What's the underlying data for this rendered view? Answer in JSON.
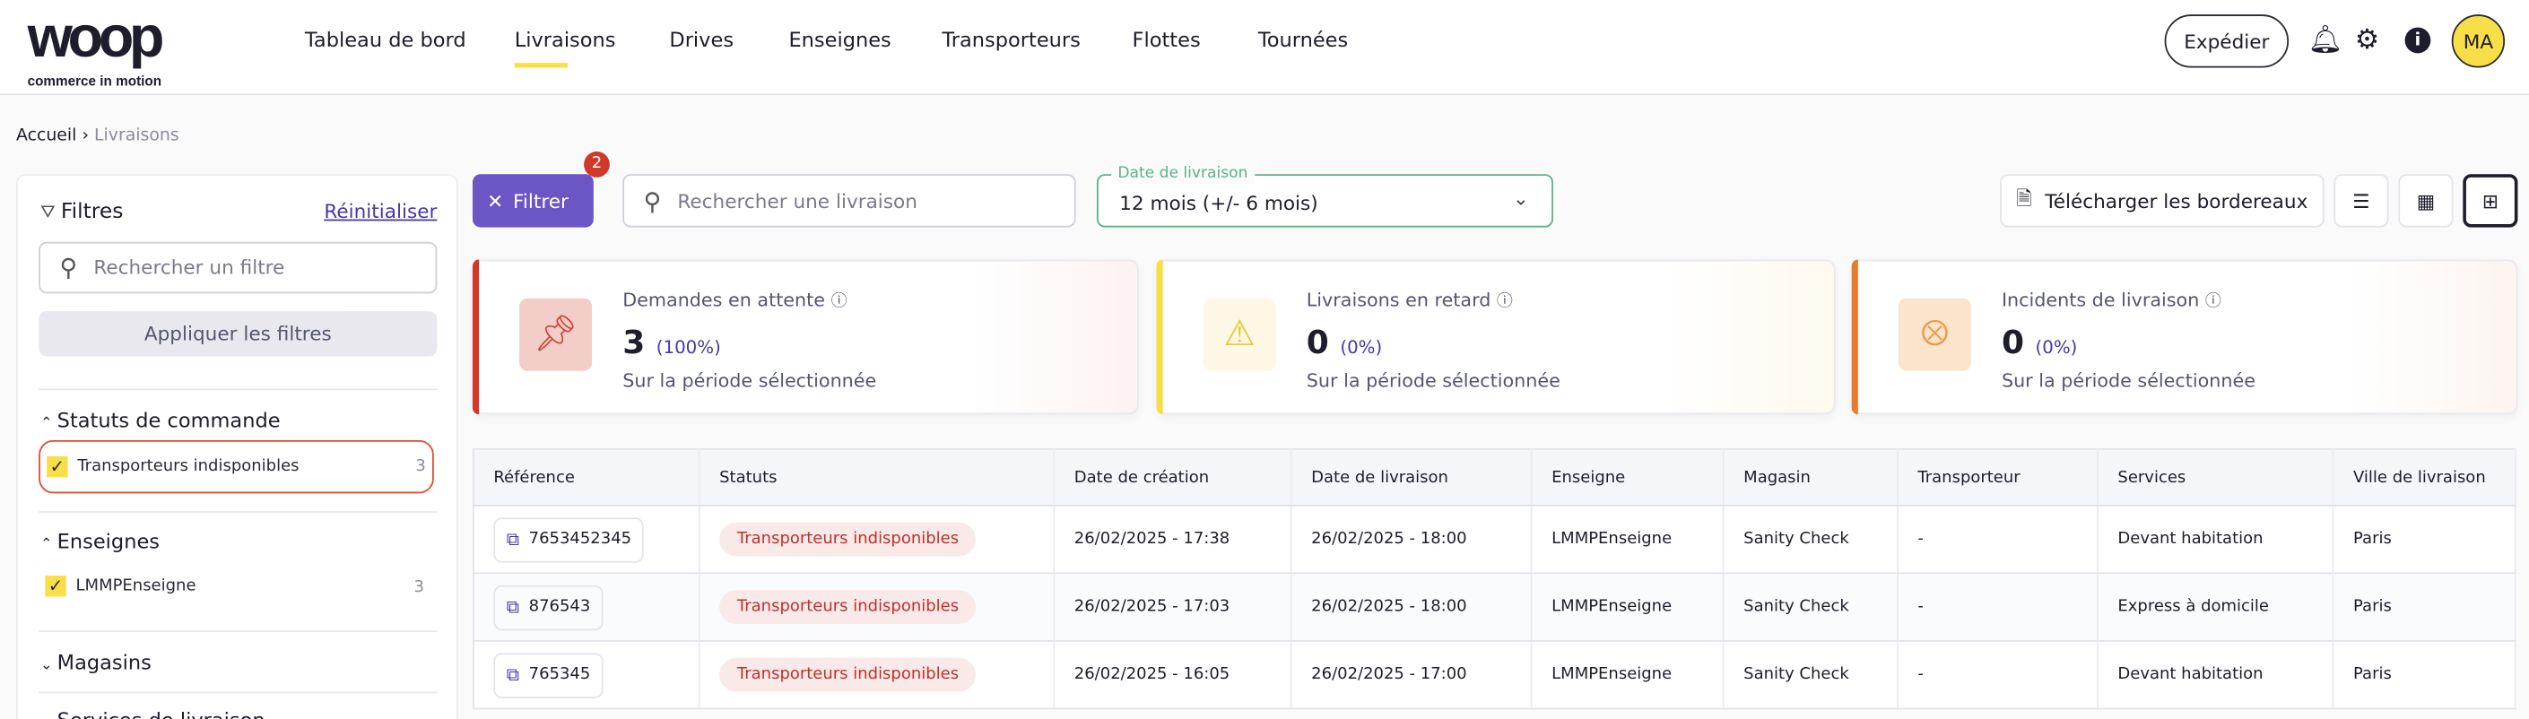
{
  "header": {
    "logo_text": "woop",
    "logo_tagline": "commerce in motion",
    "nav": [
      {
        "label": "Tableau de bord"
      },
      {
        "label": "Livraisons",
        "active": true
      },
      {
        "label": "Drives"
      },
      {
        "label": "Enseignes"
      },
      {
        "label": "Transporteurs"
      },
      {
        "label": "Flottes"
      },
      {
        "label": "Tournées"
      }
    ],
    "ship_button": "Expédier",
    "avatar_initials": "MA",
    "icons": [
      "bell-icon",
      "gear-icon",
      "info-icon"
    ]
  },
  "breadcrumb": {
    "home": "Accueil",
    "current": "Livraisons"
  },
  "sidebar": {
    "title": "Filtres",
    "reset": "Réinitialiser",
    "search_placeholder": "Rechercher un filtre",
    "apply": "Appliquer les filtres",
    "sections": [
      {
        "title": "Statuts de commande",
        "expanded": true,
        "items": [
          {
            "label": "Transporteurs indisponibles",
            "count": "3",
            "checked": true
          }
        ]
      },
      {
        "title": "Enseignes",
        "expanded": true,
        "items": [
          {
            "label": "LMMPEnseigne",
            "count": "3",
            "checked": true
          }
        ]
      },
      {
        "title": "Magasins",
        "expanded": false
      },
      {
        "title": "Services de livraison",
        "expanded": false
      }
    ]
  },
  "toolbar": {
    "filter_label": "Filtrer",
    "filter_badge": "2",
    "search_placeholder": "Rechercher une livraison",
    "date_label": "Date de livraison",
    "date_value": "12 mois (+/- 6 mois)",
    "download": "Télécharger les bordereaux"
  },
  "cards": [
    {
      "title": "Demandes en attente",
      "value": "3",
      "pct": "(100%)",
      "sub": "Sur la période sélectionnée",
      "color": "#d0382a"
    },
    {
      "title": "Livraisons en retard",
      "value": "0",
      "pct": "(0%)",
      "sub": "Sur la période sélectionnée",
      "color": "#f9df47"
    },
    {
      "title": "Incidents de livraison",
      "value": "0",
      "pct": "(0%)",
      "sub": "Sur la période sélectionnée",
      "color": "#e77c2e"
    }
  ],
  "table": {
    "columns": [
      "Référence",
      "Statuts",
      "Date de création",
      "Date de livraison",
      "Enseigne",
      "Magasin",
      "Transporteur",
      "Services",
      "Ville de livraison"
    ],
    "rows": [
      [
        "7653452345",
        "Transporteurs indisponibles",
        "26/02/2025 - 17:38",
        "26/02/2025 - 18:00",
        "LMMPEnseigne",
        "Sanity Check",
        "-",
        "Devant habitation",
        "Paris"
      ],
      [
        "876543",
        "Transporteurs indisponibles",
        "26/02/2025 - 17:03",
        "26/02/2025 - 18:00",
        "LMMPEnseigne",
        "Sanity Check",
        "-",
        "Express à domicile",
        "Paris"
      ],
      [
        "765345",
        "Transporteurs indisponibles",
        "26/02/2025 - 16:05",
        "26/02/2025 - 17:00",
        "LMMPEnseigne",
        "Sanity Check",
        "-",
        "Devant habitation",
        "Paris"
      ]
    ]
  }
}
